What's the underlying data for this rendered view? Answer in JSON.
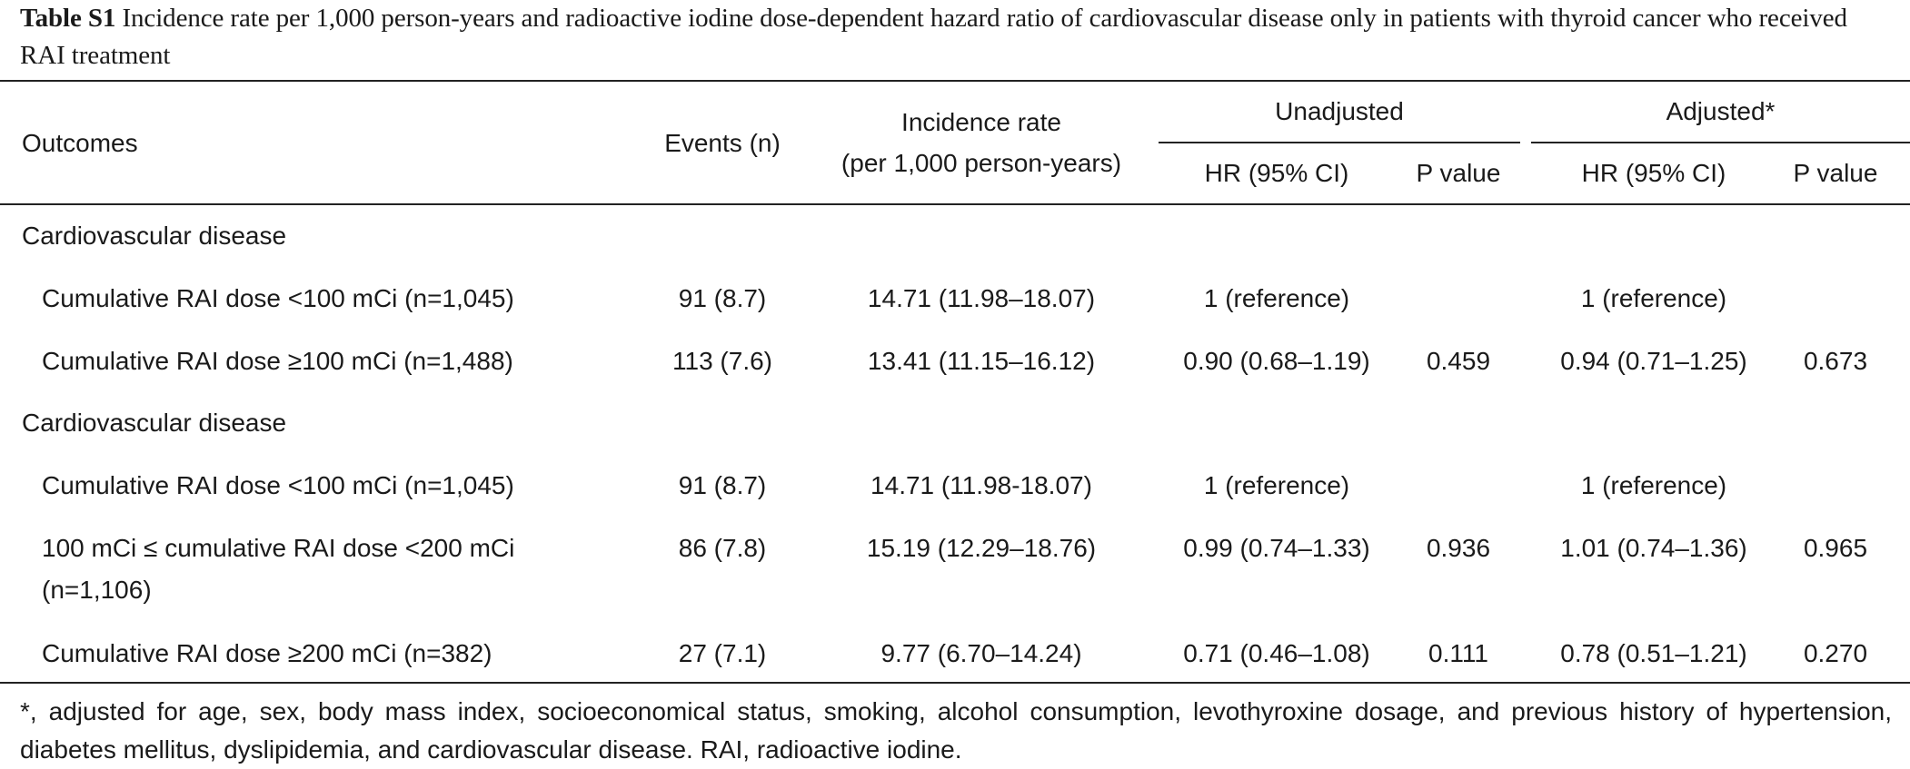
{
  "caption": {
    "label": "Table S1",
    "text": " Incidence rate per 1,000 person-years and radioactive iodine dose-dependent hazard ratio of cardiovascular disease only in patients with thyroid cancer who received RAI treatment"
  },
  "header": {
    "outcomes": "Outcomes",
    "events": "Events (n)",
    "incidence_line1": "Incidence rate",
    "incidence_line2": "(per 1,000 person-years)",
    "unadjusted": "Unadjusted",
    "adjusted": "Adjusted*",
    "hr1": "HR (95% CI)",
    "p1": "P value",
    "hr2": "HR (95% CI)",
    "p2": "P value"
  },
  "sections": [
    {
      "title": "Cardiovascular disease",
      "rows": [
        {
          "label": "Cumulative RAI dose <100 mCi (n=1,045)",
          "events": "91 (8.7)",
          "incidence": "14.71 (11.98–18.07)",
          "hr_unadj": "1 (reference)",
          "p_unadj": "",
          "hr_adj": "1 (reference)",
          "p_adj": ""
        },
        {
          "label": "Cumulative RAI dose ≥100 mCi (n=1,488)",
          "events": "113 (7.6)",
          "incidence": "13.41 (11.15–16.12)",
          "hr_unadj": "0.90 (0.68–1.19)",
          "p_unadj": "0.459",
          "hr_adj": "0.94 (0.71–1.25)",
          "p_adj": "0.673"
        }
      ]
    },
    {
      "title": "Cardiovascular disease",
      "rows": [
        {
          "label": "Cumulative RAI dose <100 mCi (n=1,045)",
          "events": "91 (8.7)",
          "incidence": "14.71 (11.98-18.07)",
          "hr_unadj": "1 (reference)",
          "p_unadj": "",
          "hr_adj": "1 (reference)",
          "p_adj": ""
        },
        {
          "label": "100 mCi ≤ cumulative RAI dose <200 mCi",
          "label2": "(n=1,106)",
          "events": "86 (7.8)",
          "incidence": "15.19 (12.29–18.76)",
          "hr_unadj": "0.99 (0.74–1.33)",
          "p_unadj": "0.936",
          "hr_adj": "1.01 (0.74–1.36)",
          "p_adj": "0.965"
        },
        {
          "label": "Cumulative RAI dose ≥200 mCi (n=382)",
          "events": "27 (7.1)",
          "incidence": "9.77 (6.70–14.24)",
          "hr_unadj": "0.71 (0.46–1.08)",
          "p_unadj": "0.111",
          "hr_adj": "0.78 (0.51–1.21)",
          "p_adj": "0.270"
        }
      ]
    }
  ],
  "footnote": "*, adjusted for age, sex, body mass index, socioeconomical status, smoking, alcohol consumption, levothyroxine dosage, and previous history of hypertension, diabetes mellitus, dyslipidemia, and cardiovascular disease. RAI, radioactive iodine."
}
